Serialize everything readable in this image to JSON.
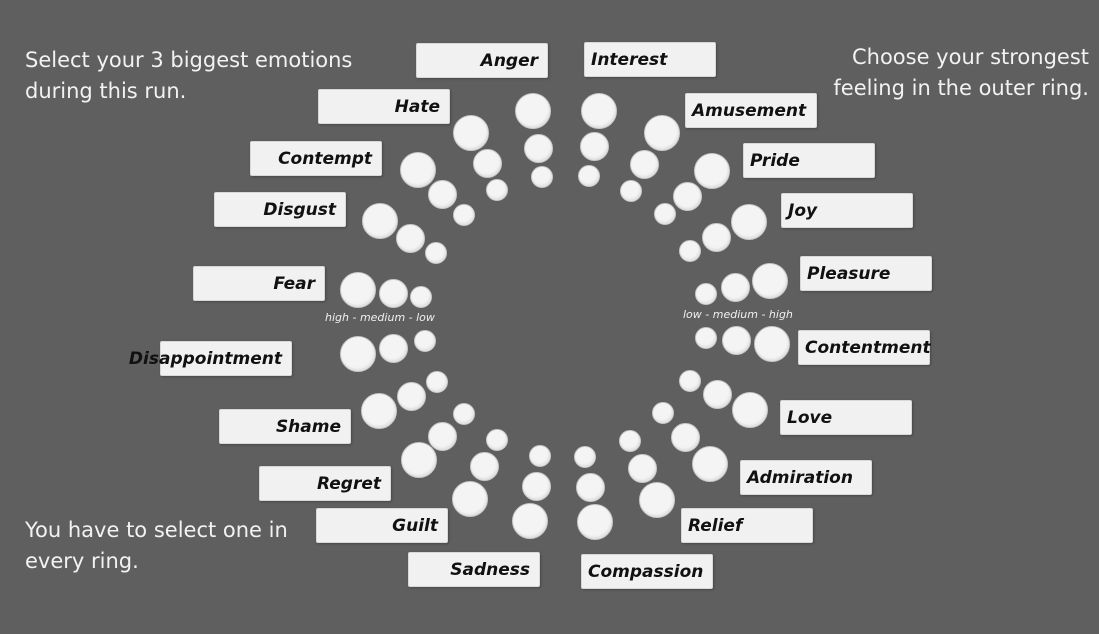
{
  "instructions": {
    "left_text": "Select your 3 biggest emotions during this run.",
    "right_text": "Choose your strongest feeling in the outer ring.",
    "bottom_text": "You have to select one in every ring."
  },
  "scales": {
    "left": "high - medium - low",
    "right": "low - medium - high"
  },
  "emotions_left": [
    "Anger",
    "Hate",
    "Contempt",
    "Disgust",
    "Fear",
    "Disappointment",
    "Shame",
    "Regret",
    "Guilt",
    "Sadness"
  ],
  "emotions_right": [
    "Interest",
    "Amusement",
    "Pride",
    "Joy",
    "Pleasure",
    "Contentment",
    "Love",
    "Admiration",
    "Relief",
    "Compassion"
  ],
  "intensity_levels": [
    "low",
    "medium",
    "high"
  ],
  "colors": {
    "background": "#5f5f5f",
    "label_bg": "#f1f1f1",
    "dot_fill": "#f4f4f4",
    "text_light": "#f2f2f2"
  }
}
